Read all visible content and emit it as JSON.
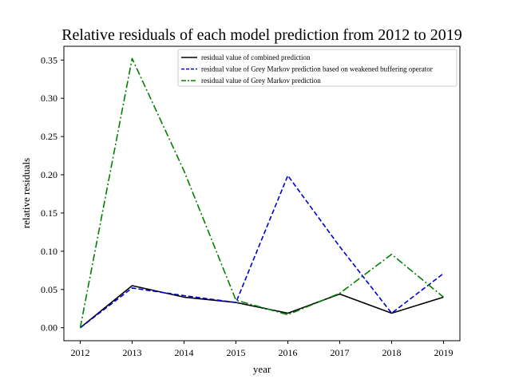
{
  "chart_data": {
    "type": "line",
    "title": "Relative residuals of each model prediction from 2012 to 2019",
    "xlabel": "year",
    "ylabel": "relative residuals",
    "categories": [
      "2012",
      "2013",
      "2014",
      "2015",
      "2016",
      "2017",
      "2018",
      "2019"
    ],
    "x": [
      2012,
      2013,
      2014,
      2015,
      2016,
      2017,
      2018,
      2019
    ],
    "ylim": [
      -0.017,
      0.368
    ],
    "yticks": [
      "0.00",
      "0.05",
      "0.10",
      "0.15",
      "0.20",
      "0.25",
      "0.30",
      "0.35"
    ],
    "ytick_values": [
      0.0,
      0.05,
      0.1,
      0.15,
      0.2,
      0.25,
      0.3,
      0.35
    ],
    "grid": false,
    "legend_position": "top-right",
    "series": [
      {
        "name": "residual value of combined prediction",
        "color": "#000000",
        "linestyle": "solid",
        "values": [
          0.0,
          0.055,
          0.04,
          0.033,
          0.019,
          0.044,
          0.019,
          0.04
        ]
      },
      {
        "name": "residual value of Grey Markov prediction based on weakened buffering operator",
        "color": "#0000cc",
        "linestyle": "dashed",
        "values": [
          0.0,
          0.052,
          0.042,
          0.033,
          0.199,
          0.106,
          0.019,
          0.071
        ]
      },
      {
        "name": "residual value of Grey Markov prediction",
        "color": "#008000",
        "linestyle": "dashdot",
        "values": [
          0.0,
          0.352,
          0.205,
          0.036,
          0.017,
          0.045,
          0.096,
          0.04
        ]
      }
    ]
  }
}
